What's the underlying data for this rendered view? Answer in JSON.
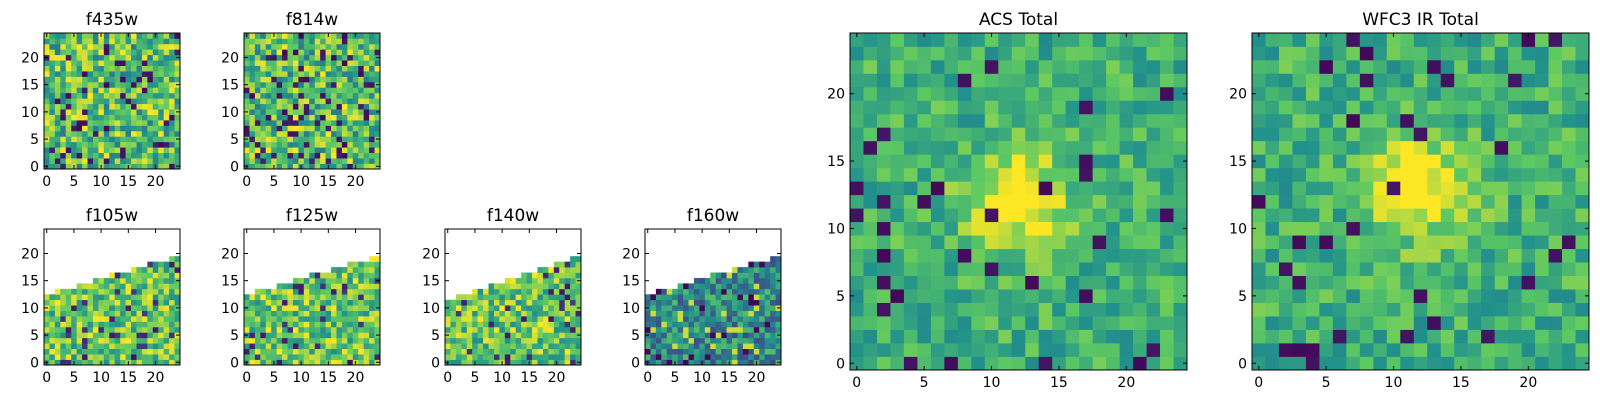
{
  "chart_data": [
    {
      "type": "heatmap",
      "title": "f435w",
      "xlabel": "",
      "ylabel": "",
      "xlim": [
        0,
        24
      ],
      "ylim": [
        0,
        24
      ],
      "xticks": [
        "0",
        "5",
        "10",
        "15",
        "20"
      ],
      "yticks": [
        "0",
        "5",
        "10",
        "15",
        "20"
      ],
      "grid_size": 25,
      "coverage": "full",
      "colormap": "viridis",
      "pattern": "noise",
      "seed": 11
    },
    {
      "type": "heatmap",
      "title": "f814w",
      "xlabel": "",
      "ylabel": "",
      "xlim": [
        0,
        24
      ],
      "ylim": [
        0,
        24
      ],
      "xticks": [
        "0",
        "5",
        "10",
        "15",
        "20"
      ],
      "yticks": [
        "0",
        "5",
        "10",
        "15",
        "20"
      ],
      "grid_size": 25,
      "coverage": "full",
      "colormap": "viridis",
      "pattern": "noise",
      "seed": 23
    },
    {
      "type": "heatmap",
      "title": "f105w",
      "xlabel": "",
      "ylabel": "",
      "xlim": [
        0,
        24
      ],
      "ylim": [
        0,
        24
      ],
      "xticks": [
        "0",
        "5",
        "10",
        "15",
        "20"
      ],
      "yticks": [
        "0",
        "5",
        "10",
        "15",
        "20"
      ],
      "grid_size": 25,
      "coverage": "lower-left wedge",
      "edge_start": 12,
      "edge_end": 19,
      "colormap": "viridis",
      "pattern": "bright",
      "seed": 37
    },
    {
      "type": "heatmap",
      "title": "f125w",
      "xlabel": "",
      "ylabel": "",
      "xlim": [
        0,
        24
      ],
      "ylim": [
        0,
        24
      ],
      "xticks": [
        "0",
        "5",
        "10",
        "15",
        "20"
      ],
      "yticks": [
        "0",
        "5",
        "10",
        "15",
        "20"
      ],
      "grid_size": 25,
      "coverage": "lower-left wedge",
      "edge_start": 12,
      "edge_end": 19,
      "colormap": "viridis",
      "pattern": "bright",
      "seed": 41
    },
    {
      "type": "heatmap",
      "title": "f140w",
      "xlabel": "",
      "ylabel": "",
      "xlim": [
        0,
        24
      ],
      "ylim": [
        0,
        24
      ],
      "xticks": [
        "0",
        "5",
        "10",
        "15",
        "20"
      ],
      "yticks": [
        "0",
        "5",
        "10",
        "15",
        "20"
      ],
      "grid_size": 25,
      "coverage": "lower-left wedge",
      "edge_start": 11,
      "edge_end": 19,
      "colormap": "viridis",
      "pattern": "bright",
      "seed": 53
    },
    {
      "type": "heatmap",
      "title": "f160w",
      "xlabel": "",
      "ylabel": "",
      "xlim": [
        0,
        24
      ],
      "ylim": [
        0,
        24
      ],
      "xticks": [
        "0",
        "5",
        "10",
        "15",
        "20"
      ],
      "yticks": [
        "0",
        "5",
        "10",
        "15",
        "20"
      ],
      "grid_size": 25,
      "coverage": "lower-left wedge",
      "edge_start": 12,
      "edge_end": 19,
      "colormap": "viridis",
      "pattern": "dark",
      "seed": 67
    },
    {
      "type": "heatmap",
      "title": "ACS Total",
      "xlabel": "",
      "ylabel": "",
      "xlim": [
        0,
        24
      ],
      "ylim": [
        0,
        24
      ],
      "xticks": [
        "0",
        "5",
        "10",
        "15",
        "20"
      ],
      "yticks": [
        "0",
        "5",
        "10",
        "15",
        "20"
      ],
      "grid_size": 25,
      "coverage": "full",
      "colormap": "viridis",
      "pattern": "centered-source",
      "source_center": [
        12,
        12
      ],
      "seed": 79
    },
    {
      "type": "heatmap",
      "title": "WFC3 IR Total",
      "xlabel": "",
      "ylabel": "",
      "xlim": [
        0,
        24
      ],
      "ylim": [
        0,
        24
      ],
      "xticks": [
        "0",
        "5",
        "10",
        "15",
        "20"
      ],
      "yticks": [
        "0",
        "5",
        "10",
        "15",
        "20"
      ],
      "grid_size": 25,
      "coverage": "full",
      "colormap": "viridis",
      "pattern": "centered-source",
      "source_center": [
        12,
        13
      ],
      "seed": 97
    }
  ]
}
